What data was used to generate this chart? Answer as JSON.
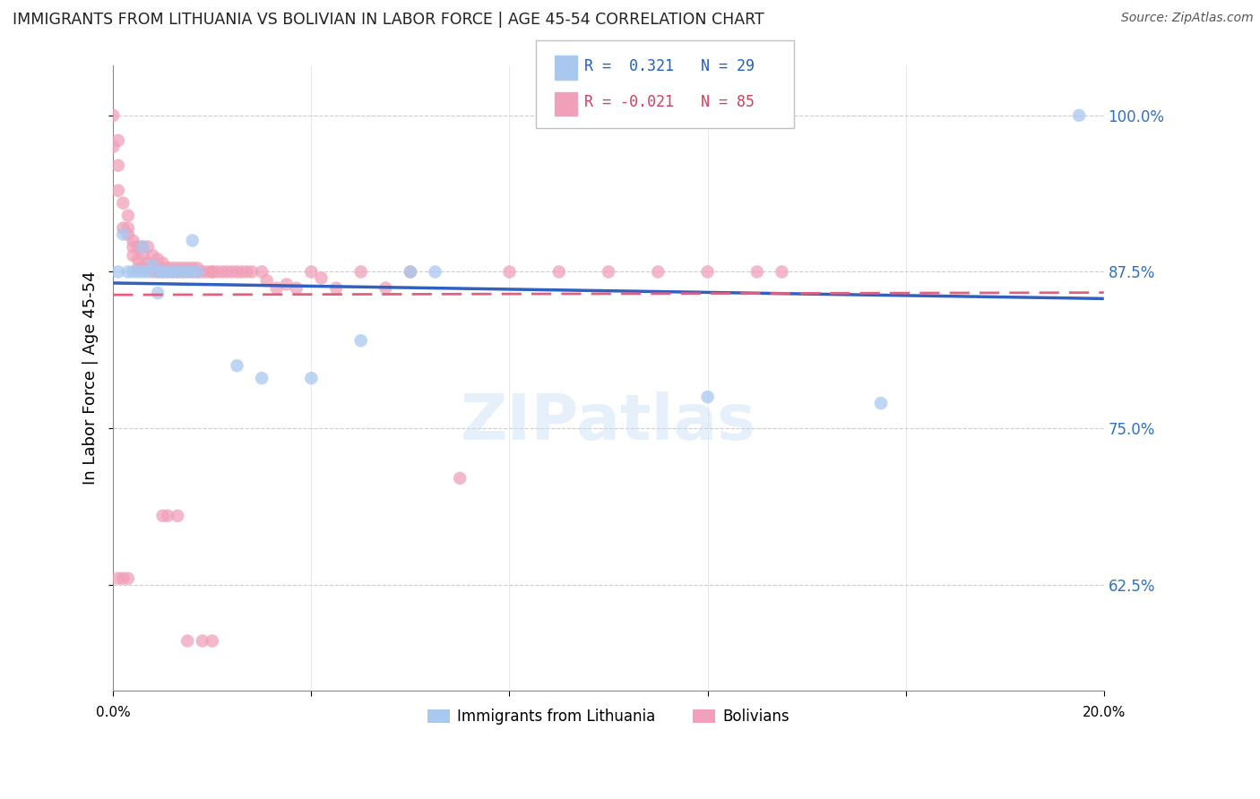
{
  "title": "IMMIGRANTS FROM LITHUANIA VS BOLIVIAN IN LABOR FORCE | AGE 45-54 CORRELATION CHART",
  "source": "Source: ZipAtlas.com",
  "ylabel": "In Labor Force | Age 45-54",
  "yticks": [
    0.625,
    0.75,
    0.875,
    1.0
  ],
  "ytick_labels": [
    "62.5%",
    "75.0%",
    "87.5%",
    "100.0%"
  ],
  "xlim": [
    0.0,
    0.2
  ],
  "ylim": [
    0.54,
    1.04
  ],
  "legend1_label": "Immigrants from Lithuania",
  "legend2_label": "Bolivians",
  "R_blue": 0.321,
  "N_blue": 29,
  "R_pink": -0.021,
  "N_pink": 85,
  "blue_color": "#a8c8f0",
  "pink_color": "#f0a0b8",
  "blue_line_color": "#3060c0",
  "pink_line_color": "#e06080",
  "blue_x": [
    0.001,
    0.002,
    0.003,
    0.004,
    0.005,
    0.006,
    0.006,
    0.007,
    0.008,
    0.009,
    0.009,
    0.01,
    0.011,
    0.012,
    0.013,
    0.014,
    0.015,
    0.016,
    0.016,
    0.017,
    0.025,
    0.03,
    0.04,
    0.05,
    0.06,
    0.065,
    0.12,
    0.155,
    0.195
  ],
  "blue_y": [
    0.875,
    0.905,
    0.875,
    0.875,
    0.875,
    0.895,
    0.875,
    0.875,
    0.88,
    0.875,
    0.858,
    0.875,
    0.875,
    0.875,
    0.875,
    0.875,
    0.875,
    0.9,
    0.875,
    0.875,
    0.8,
    0.79,
    0.79,
    0.82,
    0.875,
    0.875,
    0.775,
    0.77,
    1.0
  ],
  "pink_x": [
    0.0,
    0.0,
    0.001,
    0.001,
    0.001,
    0.002,
    0.002,
    0.003,
    0.003,
    0.003,
    0.004,
    0.004,
    0.004,
    0.005,
    0.005,
    0.005,
    0.006,
    0.006,
    0.006,
    0.007,
    0.007,
    0.007,
    0.008,
    0.008,
    0.008,
    0.009,
    0.009,
    0.009,
    0.01,
    0.01,
    0.01,
    0.011,
    0.011,
    0.012,
    0.012,
    0.013,
    0.013,
    0.014,
    0.014,
    0.015,
    0.015,
    0.016,
    0.016,
    0.017,
    0.017,
    0.018,
    0.019,
    0.02,
    0.02,
    0.021,
    0.022,
    0.023,
    0.024,
    0.025,
    0.026,
    0.027,
    0.028,
    0.03,
    0.031,
    0.033,
    0.035,
    0.037,
    0.04,
    0.042,
    0.045,
    0.05,
    0.055,
    0.06,
    0.07,
    0.08,
    0.09,
    0.1,
    0.11,
    0.12,
    0.13,
    0.135,
    0.001,
    0.002,
    0.003,
    0.01,
    0.011,
    0.013,
    0.015,
    0.018,
    0.02
  ],
  "pink_y": [
    1.0,
    0.975,
    0.98,
    0.96,
    0.94,
    0.93,
    0.91,
    0.92,
    0.91,
    0.905,
    0.9,
    0.895,
    0.888,
    0.895,
    0.885,
    0.878,
    0.895,
    0.888,
    0.878,
    0.895,
    0.882,
    0.878,
    0.888,
    0.878,
    0.875,
    0.885,
    0.878,
    0.875,
    0.882,
    0.878,
    0.875,
    0.878,
    0.875,
    0.878,
    0.875,
    0.878,
    0.875,
    0.878,
    0.875,
    0.878,
    0.875,
    0.878,
    0.875,
    0.878,
    0.875,
    0.875,
    0.875,
    0.875,
    0.875,
    0.875,
    0.875,
    0.875,
    0.875,
    0.875,
    0.875,
    0.875,
    0.875,
    0.875,
    0.868,
    0.862,
    0.865,
    0.862,
    0.875,
    0.87,
    0.862,
    0.875,
    0.862,
    0.875,
    0.71,
    0.875,
    0.875,
    0.875,
    0.875,
    0.875,
    0.875,
    0.875,
    0.63,
    0.63,
    0.63,
    0.68,
    0.68,
    0.68,
    0.58,
    0.58,
    0.58
  ]
}
